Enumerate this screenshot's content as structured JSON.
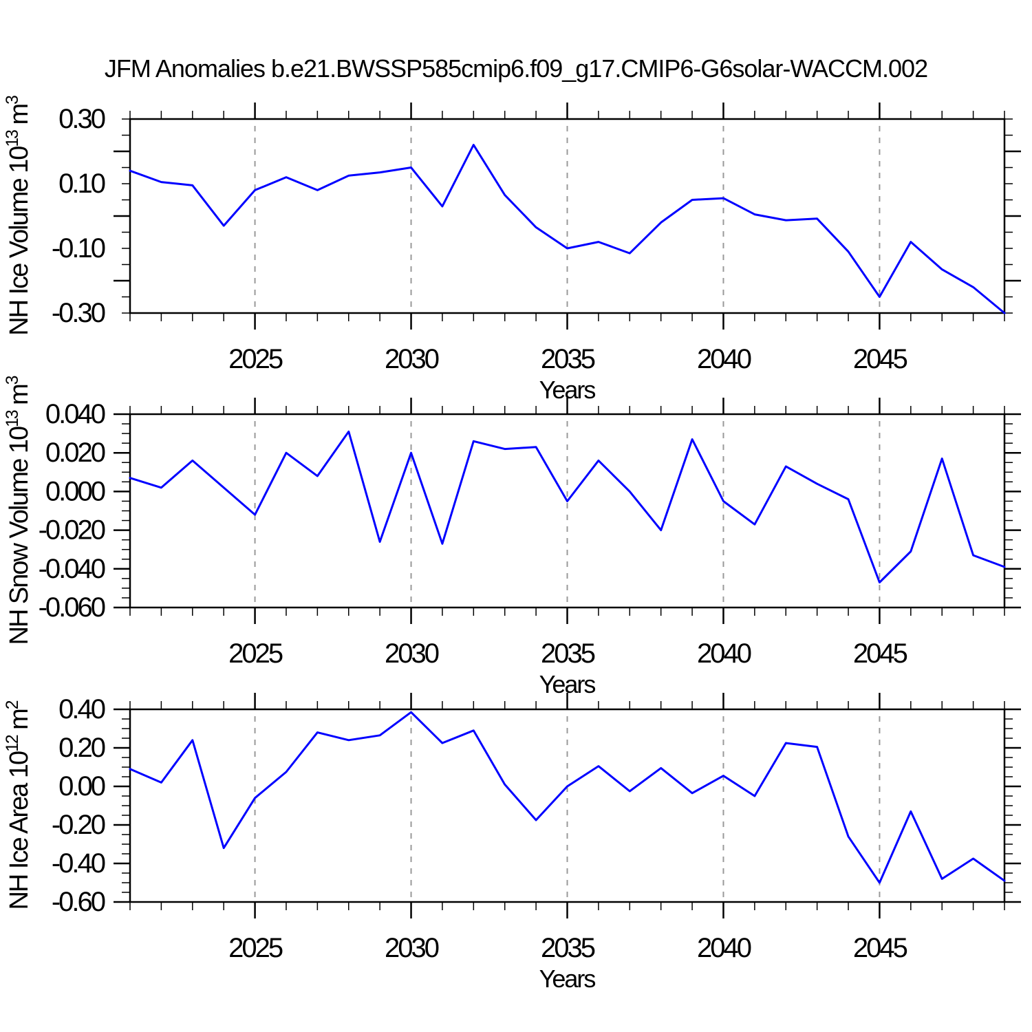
{
  "title": "JFM Anomalies b.e21.BWSSP585cmip6.f09_g17.CMIP6-G6solar-WACCM.002",
  "line_color": "#0000ff",
  "grid_color": "#999999",
  "axis_color": "#000000",
  "background_color": "#ffffff",
  "chart_data": [
    {
      "type": "line",
      "name": "nh-ice-volume",
      "ylabel": "NH Ice Volume 10^13 m^3",
      "ylabel_parts": [
        {
          "t": "NH Ice Volume 10"
        },
        {
          "t": "13",
          "sup": true
        },
        {
          "t": " m"
        },
        {
          "t": "3",
          "sup": true
        }
      ],
      "xlabel": "Years",
      "x": [
        2021,
        2022,
        2023,
        2024,
        2025,
        2026,
        2027,
        2028,
        2029,
        2030,
        2031,
        2032,
        2033,
        2034,
        2035,
        2036,
        2037,
        2038,
        2039,
        2040,
        2041,
        2042,
        2043,
        2044,
        2045,
        2046,
        2047,
        2048,
        2049
      ],
      "values": [
        0.14,
        0.105,
        0.095,
        -0.03,
        0.08,
        0.12,
        0.08,
        0.125,
        0.135,
        0.15,
        0.03,
        0.22,
        0.065,
        -0.035,
        -0.1,
        -0.08,
        -0.115,
        -0.02,
        0.05,
        0.055,
        0.005,
        -0.013,
        -0.008,
        -0.11,
        -0.25,
        -0.08,
        -0.165,
        -0.22,
        -0.3
      ],
      "xlim": [
        2021,
        2049
      ],
      "ylim": [
        -0.3,
        0.3
      ],
      "ytick_major_step": 0.2,
      "ytick_minor_step": 0.05,
      "ytick_decimals": 2,
      "xtick_major_labels": [
        "2025",
        "2030",
        "2035",
        "2040",
        "2045"
      ],
      "xtick_major_values": [
        2025,
        2030,
        2035,
        2040,
        2045
      ],
      "grid": "vertical-dashed",
      "legend": "none"
    },
    {
      "type": "line",
      "name": "nh-snow-volume",
      "ylabel": "NH Snow Volume 10^13 m^3",
      "ylabel_parts": [
        {
          "t": "NH Snow Volume 10"
        },
        {
          "t": "13",
          "sup": true
        },
        {
          "t": " m"
        },
        {
          "t": "3",
          "sup": true
        }
      ],
      "xlabel": "Years",
      "x": [
        2021,
        2022,
        2023,
        2024,
        2025,
        2026,
        2027,
        2028,
        2029,
        2030,
        2031,
        2032,
        2033,
        2034,
        2035,
        2036,
        2037,
        2038,
        2039,
        2040,
        2041,
        2042,
        2043,
        2044,
        2045,
        2046,
        2047,
        2048,
        2049
      ],
      "values": [
        0.007,
        0.002,
        0.016,
        0.002,
        -0.012,
        0.02,
        0.008,
        0.031,
        -0.026,
        0.02,
        -0.027,
        0.026,
        0.022,
        0.023,
        -0.005,
        0.016,
        0.0,
        -0.02,
        0.027,
        -0.005,
        -0.017,
        0.013,
        0.004,
        -0.004,
        -0.047,
        -0.031,
        0.017,
        -0.033,
        -0.039
      ],
      "xlim": [
        2021,
        2049
      ],
      "ylim": [
        -0.06,
        0.04
      ],
      "ytick_major_step": 0.02,
      "ytick_minor_step": 0.005,
      "ytick_decimals": 3,
      "xtick_major_labels": [
        "2025",
        "2030",
        "2035",
        "2040",
        "2045"
      ],
      "xtick_major_values": [
        2025,
        2030,
        2035,
        2040,
        2045
      ],
      "grid": "vertical-dashed",
      "legend": "none"
    },
    {
      "type": "line",
      "name": "nh-ice-area",
      "ylabel": "NH Ice Area 10^12 m^2",
      "ylabel_parts": [
        {
          "t": "NH Ice Area 10"
        },
        {
          "t": "12",
          "sup": true
        },
        {
          "t": " m"
        },
        {
          "t": "2",
          "sup": true
        }
      ],
      "xlabel": "Years",
      "x": [
        2021,
        2022,
        2023,
        2024,
        2025,
        2026,
        2027,
        2028,
        2029,
        2030,
        2031,
        2032,
        2033,
        2034,
        2035,
        2036,
        2037,
        2038,
        2039,
        2040,
        2041,
        2042,
        2043,
        2044,
        2045,
        2046,
        2047,
        2048,
        2049
      ],
      "values": [
        0.09,
        0.02,
        0.24,
        -0.32,
        -0.06,
        0.075,
        0.28,
        0.24,
        0.265,
        0.385,
        0.225,
        0.29,
        0.01,
        -0.175,
        0.0,
        0.105,
        -0.025,
        0.095,
        -0.035,
        0.055,
        -0.05,
        0.225,
        0.205,
        -0.26,
        -0.5,
        -0.13,
        -0.48,
        -0.375,
        -0.49
      ],
      "xlim": [
        2021,
        2049
      ],
      "ylim": [
        -0.6,
        0.4
      ],
      "ytick_major_step": 0.2,
      "ytick_minor_step": 0.05,
      "ytick_decimals": 2,
      "xtick_major_labels": [
        "2025",
        "2030",
        "2035",
        "2040",
        "2045"
      ],
      "xtick_major_values": [
        2025,
        2030,
        2035,
        2040,
        2045
      ],
      "grid": "vertical-dashed",
      "legend": "none"
    }
  ]
}
